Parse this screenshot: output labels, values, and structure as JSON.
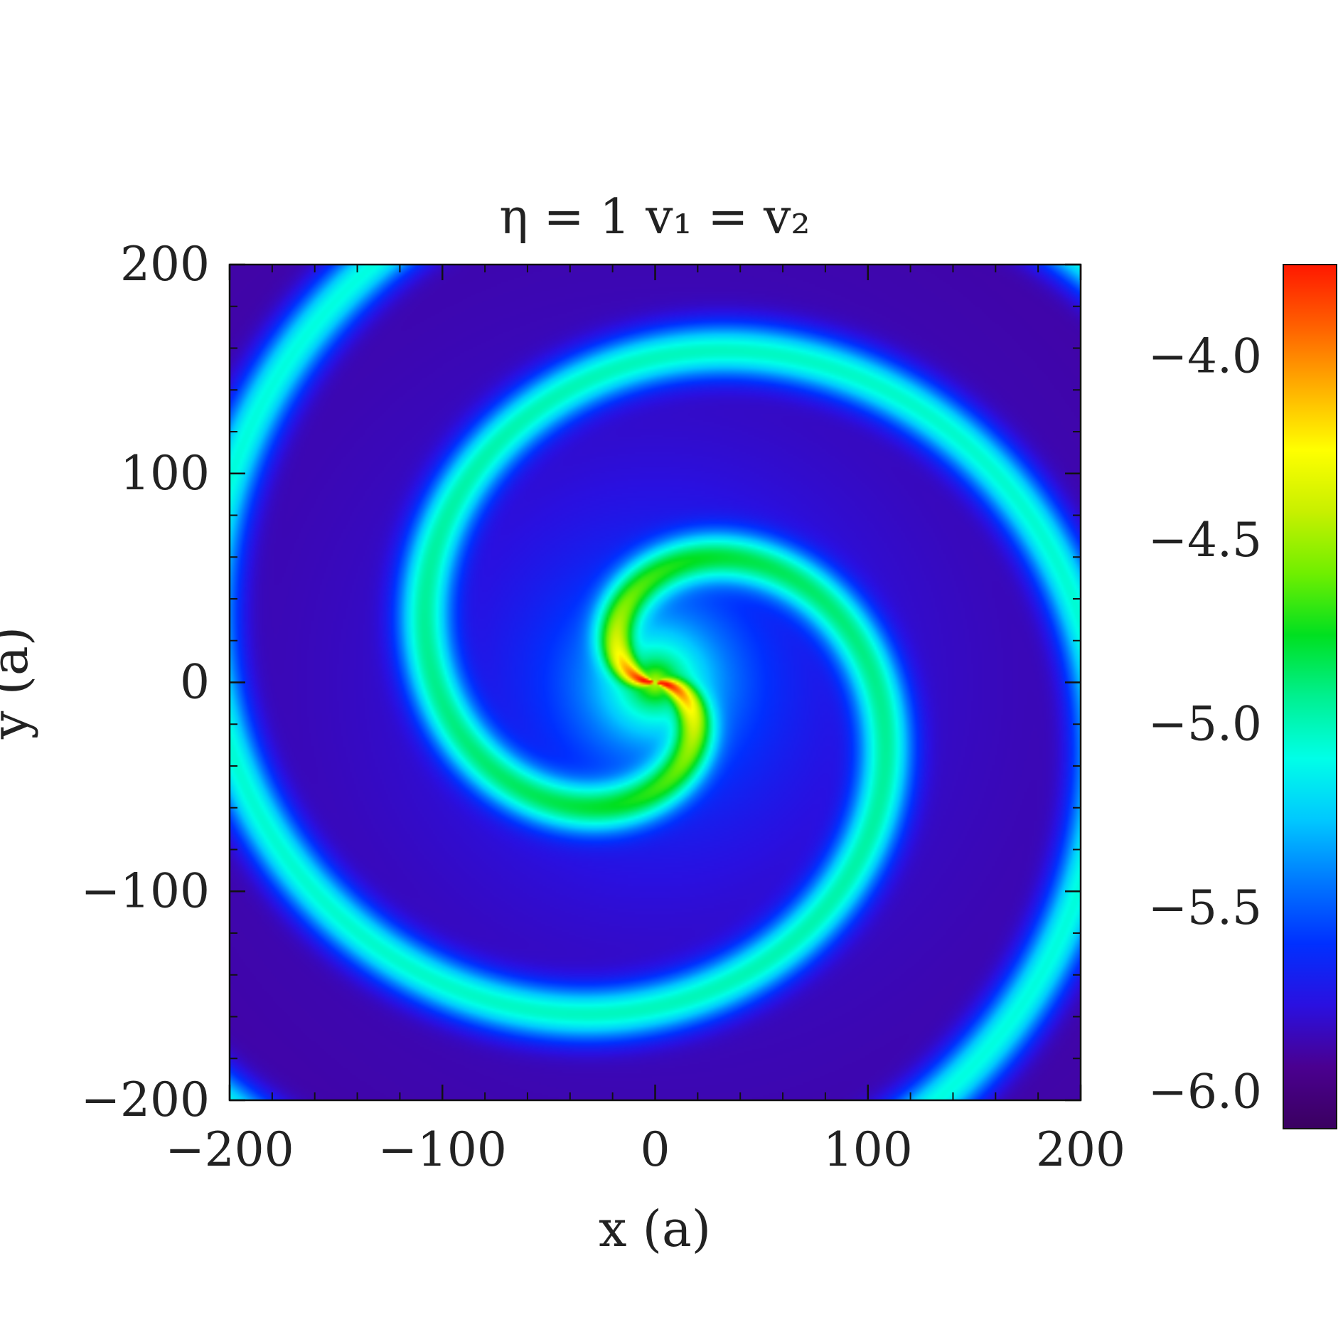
{
  "chart_data": {
    "type": "heatmap",
    "title": "η = 1   v₁ = v₂",
    "xlabel": "x (a)",
    "ylabel": "y (a)",
    "xlim": [
      -200,
      200
    ],
    "ylim": [
      -200,
      200
    ],
    "x_ticks": [
      {
        "value": -200,
        "label": "−200"
      },
      {
        "value": -100,
        "label": "−100"
      },
      {
        "value": 0,
        "label": "0"
      },
      {
        "value": 100,
        "label": "100"
      },
      {
        "value": 200,
        "label": "200"
      }
    ],
    "y_ticks": [
      {
        "value": 200,
        "label": "200"
      },
      {
        "value": 100,
        "label": "100"
      },
      {
        "value": 0,
        "label": "0"
      },
      {
        "value": -100,
        "label": "−100"
      },
      {
        "value": -200,
        "label": "−200"
      }
    ],
    "colorbar": {
      "range": [
        -6.1,
        -3.75
      ],
      "ticks": [
        {
          "value": -4.0,
          "label": "−4.0"
        },
        {
          "value": -4.5,
          "label": "−4.5"
        },
        {
          "value": -5.0,
          "label": "−5.0"
        },
        {
          "value": -5.5,
          "label": "−5.5"
        },
        {
          "value": -6.0,
          "label": "−6.0"
        }
      ],
      "colormap": [
        "#3a0060",
        "#4a0090",
        "#2a10e0",
        "#0030ff",
        "#0078ff",
        "#00c8ff",
        "#00ffe8",
        "#00f090",
        "#00e020",
        "#70ef00",
        "#c8f000",
        "#ffff00",
        "#ffb000",
        "#ff6000",
        "#ff1800"
      ]
    },
    "field": {
      "description_values": "two-armed spiral density pattern",
      "center_value": -3.85,
      "arm_value": -5.0,
      "inter_arm_value": -5.9
    }
  }
}
